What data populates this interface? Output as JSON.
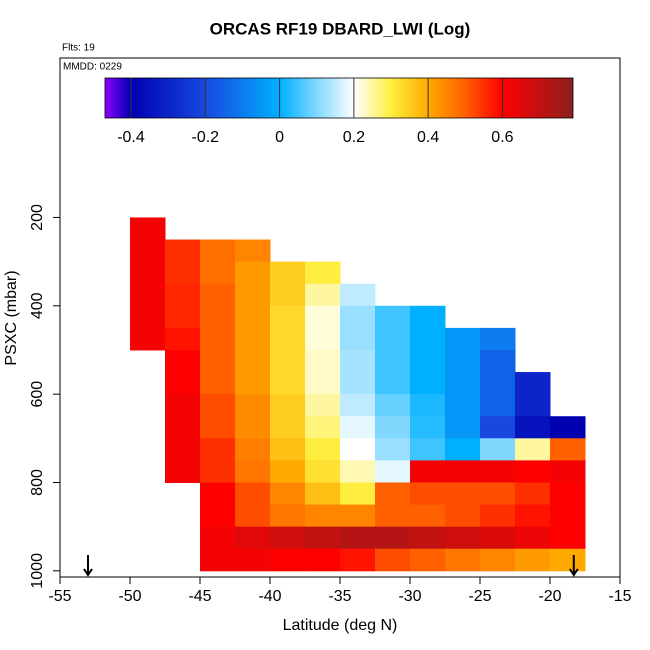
{
  "chart_data": {
    "type": "heatmap",
    "title": "ORCAS RF19 DBARD_LWI (Log)",
    "subtitle": "Flts: 19",
    "annotation": "MMDD: 0229",
    "xlabel": "Latitude (deg N)",
    "ylabel": "PSXC (mbar)",
    "xlim": [
      -55,
      -15
    ],
    "xticks": [
      -55,
      -50,
      -45,
      -40,
      -35,
      -30,
      -25,
      -20,
      -15
    ],
    "ylim": [
      1014,
      -161
    ],
    "yticks": [
      200,
      400,
      600,
      800,
      1000
    ],
    "x_edges": [
      -50,
      -47.5,
      -45,
      -42.5,
      -40,
      -37.5,
      -35,
      -32.5,
      -30,
      -27.5,
      -25,
      -22.5,
      -20,
      -17.5
    ],
    "y_edges": [
      200,
      250,
      300,
      350,
      400,
      450,
      500,
      550,
      600,
      650,
      700,
      750,
      800,
      850,
      900,
      950,
      1000
    ],
    "z": [
      [
        0.62,
        null,
        null,
        null,
        null,
        null,
        null,
        null,
        null,
        null,
        null,
        null,
        null
      ],
      [
        0.62,
        0.55,
        0.48,
        0.45,
        null,
        null,
        null,
        null,
        null,
        null,
        null,
        null,
        null
      ],
      [
        0.62,
        0.55,
        0.48,
        0.42,
        0.35,
        0.3,
        null,
        null,
        null,
        null,
        null,
        null,
        null
      ],
      [
        0.62,
        0.56,
        0.5,
        0.42,
        0.35,
        0.25,
        0.15,
        null,
        null,
        null,
        null,
        null,
        null
      ],
      [
        0.62,
        0.56,
        0.5,
        0.42,
        0.33,
        0.22,
        0.12,
        0.05,
        0.0,
        null,
        null,
        null,
        null
      ],
      [
        0.62,
        0.58,
        0.5,
        0.42,
        0.33,
        0.22,
        0.12,
        0.05,
        0.0,
        -0.05,
        -0.1,
        null,
        null
      ],
      [
        null,
        0.6,
        0.5,
        0.42,
        0.33,
        0.23,
        0.13,
        0.05,
        0.0,
        -0.05,
        -0.15,
        null,
        null
      ],
      [
        null,
        0.6,
        0.5,
        0.42,
        0.33,
        0.23,
        0.13,
        0.05,
        0.0,
        -0.05,
        -0.15,
        -0.3,
        null
      ],
      [
        null,
        0.62,
        0.52,
        0.44,
        0.35,
        0.25,
        0.15,
        0.08,
        0.02,
        -0.05,
        -0.15,
        -0.3,
        null
      ],
      [
        null,
        0.62,
        0.52,
        0.44,
        0.35,
        0.27,
        0.18,
        0.1,
        0.03,
        -0.05,
        -0.2,
        -0.35,
        -0.4
      ],
      [
        null,
        0.62,
        0.55,
        0.46,
        0.37,
        0.3,
        0.2,
        0.12,
        0.05,
        0.0,
        0.1,
        0.25,
        0.5
      ],
      [
        null,
        0.62,
        0.55,
        0.47,
        0.4,
        0.32,
        0.24,
        0.18,
        0.62,
        0.62,
        0.62,
        0.6,
        0.62
      ],
      [
        null,
        null,
        0.6,
        0.52,
        0.45,
        0.37,
        0.3,
        0.5,
        0.52,
        0.52,
        0.52,
        0.55,
        0.6
      ],
      [
        null,
        null,
        0.6,
        0.52,
        0.47,
        0.45,
        0.45,
        0.5,
        0.5,
        0.52,
        0.55,
        0.58,
        0.6
      ],
      [
        null,
        null,
        0.62,
        0.65,
        0.68,
        0.7,
        0.72,
        0.72,
        0.7,
        0.68,
        0.66,
        0.63,
        0.6
      ],
      [
        null,
        null,
        0.62,
        0.62,
        0.6,
        0.6,
        0.58,
        0.52,
        0.5,
        0.47,
        0.45,
        0.42,
        0.4
      ]
    ],
    "clim": [
      -0.47,
      0.79
    ],
    "cticks": [
      -0.4,
      -0.2,
      0.0,
      0.2,
      0.4,
      0.6
    ],
    "colorscale": [
      [
        -0.47,
        "#8a00ff"
      ],
      [
        -0.4,
        "#0000b0"
      ],
      [
        -0.2,
        "#1848e0"
      ],
      [
        0.0,
        "#00b0ff"
      ],
      [
        0.2,
        "#ffffff"
      ],
      [
        0.3,
        "#ffee40"
      ],
      [
        0.4,
        "#ffaa00"
      ],
      [
        0.5,
        "#ff6000"
      ],
      [
        0.6,
        "#ff0000"
      ],
      [
        0.79,
        "#8a2020"
      ]
    ],
    "arrows_x": [
      -53,
      -18.3
    ]
  }
}
